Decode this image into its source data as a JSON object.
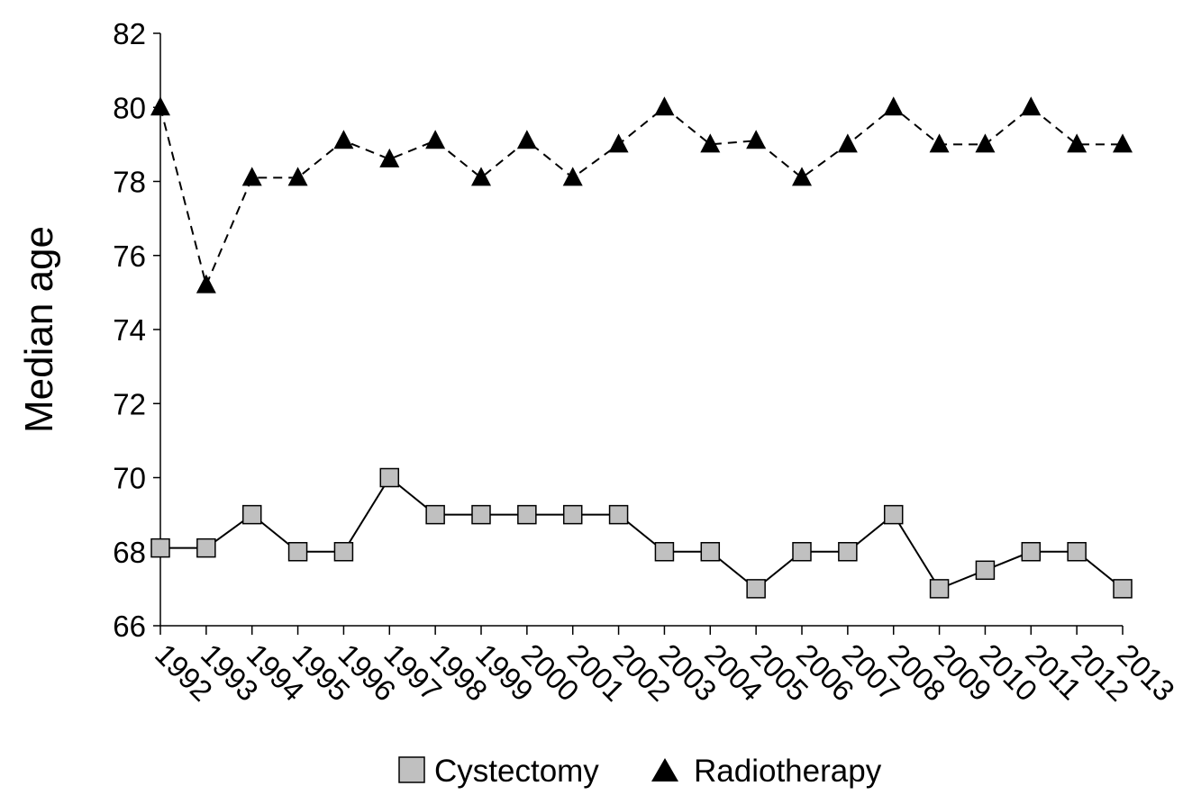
{
  "chart_data": {
    "type": "line",
    "ylabel": "Median age",
    "xlabel": "",
    "ylim": [
      66,
      82
    ],
    "yticks": [
      66,
      68,
      70,
      72,
      74,
      76,
      78,
      80,
      82
    ],
    "categories": [
      "1992",
      "1993",
      "1994",
      "1995",
      "1996",
      "1997",
      "1998",
      "1999",
      "2000",
      "2001",
      "2002",
      "2003",
      "2004",
      "2005",
      "2006",
      "2007",
      "2008",
      "2009",
      "2010",
      "2011",
      "2012",
      "2013"
    ],
    "series": [
      {
        "name": "Cystectomy",
        "marker": "square",
        "line": "solid",
        "marker_fill": "#c0c0c0",
        "values": [
          68.1,
          68.1,
          69.0,
          68.0,
          68.0,
          70.0,
          69.0,
          69.0,
          69.0,
          69.0,
          69.0,
          68.0,
          68.0,
          67.0,
          68.0,
          68.0,
          69.0,
          67.0,
          67.5,
          68.0,
          68.0,
          67.0
        ]
      },
      {
        "name": "Radiotherapy",
        "marker": "triangle",
        "line": "dashed",
        "marker_fill": "#000000",
        "values": [
          80.0,
          75.2,
          78.1,
          78.1,
          79.1,
          78.6,
          79.1,
          78.1,
          79.1,
          78.1,
          79.0,
          80.0,
          79.0,
          79.1,
          78.1,
          79.0,
          80.0,
          79.0,
          79.0,
          80.0,
          79.0,
          79.0
        ]
      }
    ],
    "grid": false,
    "legend_position": "bottom"
  }
}
